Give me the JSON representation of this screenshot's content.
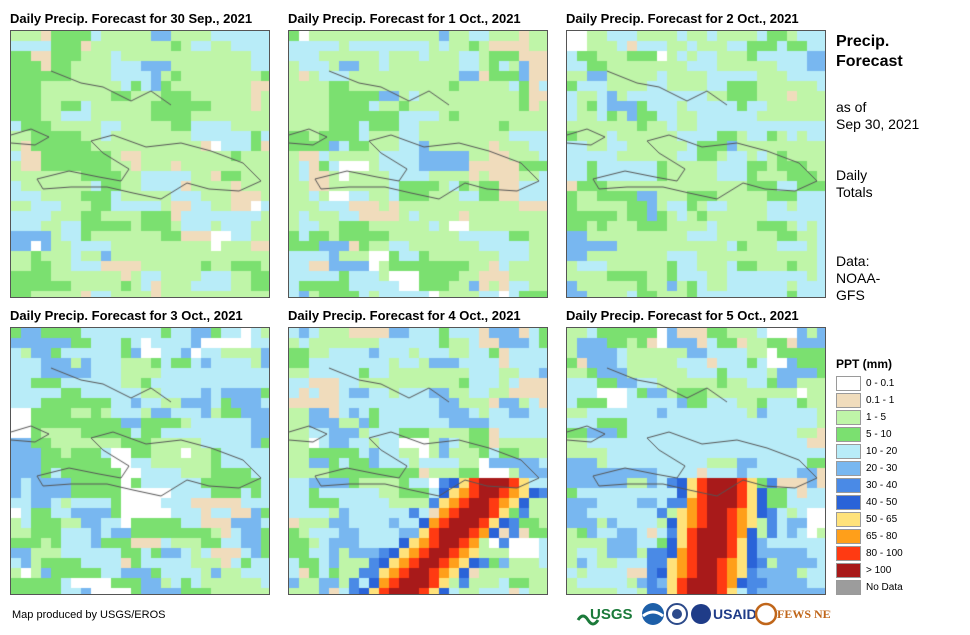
{
  "panels": [
    {
      "title": "Daily Precip. Forecast for 30 Sep., 2021",
      "scenario": "dry"
    },
    {
      "title": "Daily Precip. Forecast for 1 Oct., 2021",
      "scenario": "mixed"
    },
    {
      "title": "Daily Precip. Forecast for 2 Oct., 2021",
      "scenario": "light"
    },
    {
      "title": "Daily Precip. Forecast for 3 Oct., 2021",
      "scenario": "moderate"
    },
    {
      "title": "Daily Precip. Forecast for 4 Oct., 2021",
      "scenario": "storm_south"
    },
    {
      "title": "Daily Precip. Forecast for 5 Oct., 2021",
      "scenario": "storm_east"
    }
  ],
  "side": {
    "heading_line1": "Precip.",
    "heading_line2": "Forecast",
    "asof_line1": "as of",
    "asof_line2": "Sep 30, 2021",
    "totals_line1": "Daily",
    "totals_line2": "Totals",
    "data_line1": "Data:",
    "data_line2": "NOAA-",
    "data_line3": "GFS"
  },
  "legend": {
    "title": "PPT (mm)",
    "items": [
      {
        "label": "0 - 0.1",
        "color": "#ffffff"
      },
      {
        "label": "0.1 - 1",
        "color": "#f0dcbc"
      },
      {
        "label": "1 - 5",
        "color": "#bff5a8"
      },
      {
        "label": "5 - 10",
        "color": "#7be070"
      },
      {
        "label": "10 - 20",
        "color": "#b8ecf8"
      },
      {
        "label": "20 - 30",
        "color": "#78b7f0"
      },
      {
        "label": "30 - 40",
        "color": "#4a8ae6"
      },
      {
        "label": "40 - 50",
        "color": "#2a63d8"
      },
      {
        "label": "50 - 65",
        "color": "#ffe27a"
      },
      {
        "label": "65 - 80",
        "color": "#ff9f1a"
      },
      {
        "label": "80 - 100",
        "color": "#ff3a12"
      },
      {
        "label": "> 100",
        "color": "#a81a1a"
      },
      {
        "label": "No Data",
        "color": "#9c9c9c"
      }
    ]
  },
  "credit": "Map produced by USGS/EROS",
  "logos": {
    "usgs": "USGS",
    "usaid": "USAID",
    "fewsnet": "FEWS NET"
  }
}
